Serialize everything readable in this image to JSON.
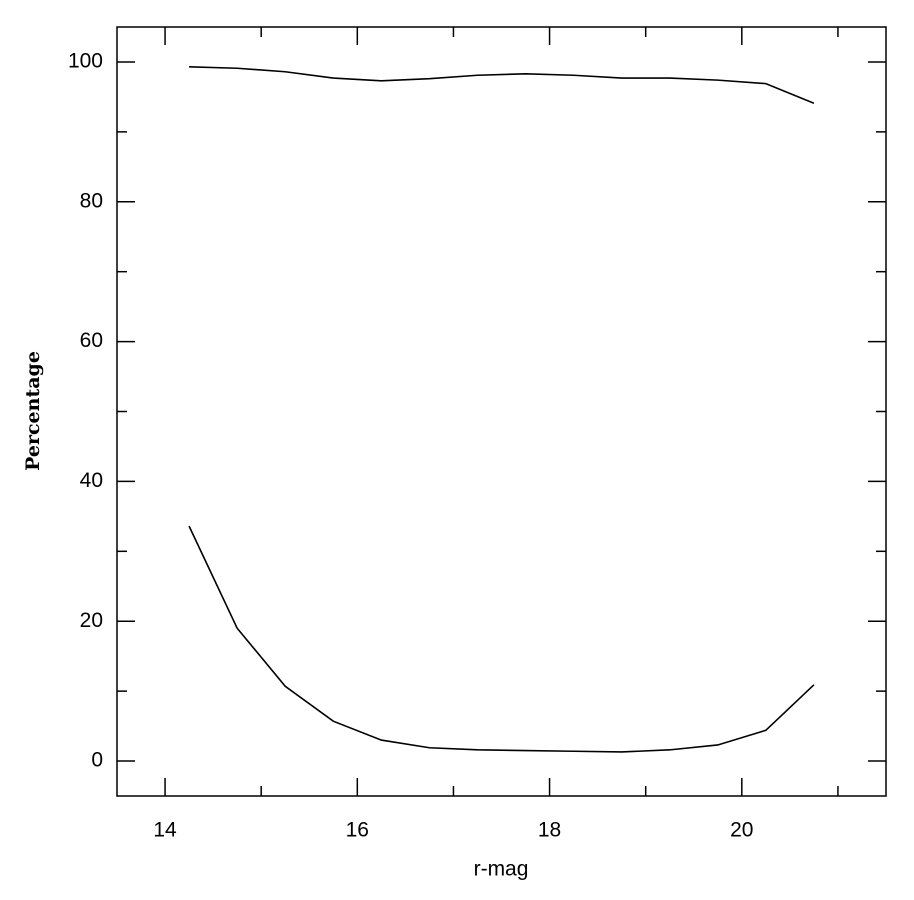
{
  "chart_data": {
    "type": "line",
    "xlabel": "r-mag",
    "ylabel": "Percentage",
    "x": [
      14.25,
      14.75,
      15.25,
      15.75,
      16.25,
      16.75,
      17.25,
      17.75,
      18.25,
      18.75,
      19.25,
      19.75,
      20.25,
      20.75
    ],
    "series": [
      {
        "color": "#000000",
        "values": [
          99.3,
          99.1,
          98.6,
          97.7,
          97.3,
          97.6,
          98.1,
          98.3,
          98.1,
          97.7,
          97.7,
          97.4,
          96.9,
          94.1
        ]
      },
      {
        "color": "#000000",
        "values": [
          33.6,
          19.0,
          10.7,
          5.7,
          3.0,
          1.9,
          1.6,
          1.5,
          1.4,
          1.3,
          1.6,
          2.3,
          4.4,
          10.9
        ]
      }
    ],
    "xlim": [
      13.5,
      21.5
    ],
    "xticks": [
      14,
      16,
      18,
      20
    ],
    "xminorticks": [
      15,
      17,
      19,
      21
    ],
    "ylim": [
      -5,
      105
    ],
    "yticks": [
      0,
      20,
      40,
      60,
      80,
      100
    ],
    "yminorticks": [
      10,
      30,
      50,
      70,
      90
    ],
    "grid": false
  }
}
